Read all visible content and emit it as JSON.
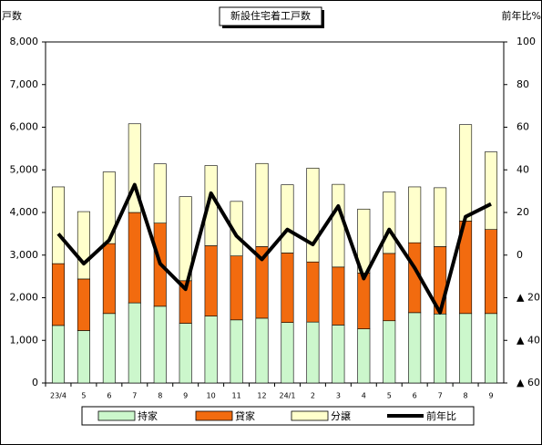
{
  "chart_data": {
    "type": "bar",
    "stacked": true,
    "title": "新設住宅着工戸数",
    "y_label": "戸数",
    "y2_label": "前年比%",
    "categories": [
      "23/4",
      "5",
      "6",
      "7",
      "8",
      "9",
      "10",
      "11",
      "12",
      "24/1",
      "2",
      "3",
      "4",
      "5",
      "6",
      "7",
      "8",
      "9"
    ],
    "series": [
      {
        "name": "持家",
        "color": "#ccf7cc",
        "values": [
          1350,
          1230,
          1630,
          1880,
          1800,
          1400,
          1570,
          1480,
          1520,
          1420,
          1430,
          1360,
          1270,
          1460,
          1650,
          1620,
          1630,
          1630
        ]
      },
      {
        "name": "貸家",
        "color": "#f26b0f",
        "values": [
          1450,
          1210,
          1640,
          2120,
          1950,
          1000,
          1650,
          1500,
          1680,
          1630,
          1410,
          1360,
          1310,
          1580,
          1640,
          1580,
          2170,
          1970
        ]
      },
      {
        "name": "分譲",
        "color": "#ffffcc",
        "values": [
          1800,
          1580,
          1680,
          2080,
          1390,
          1970,
          1880,
          1280,
          1950,
          1600,
          2200,
          1940,
          1500,
          1440,
          1310,
          1380,
          2260,
          1820
        ]
      },
      {
        "name": "前年比",
        "color": "#000000",
        "type": "line",
        "axis": "y2",
        "values": [
          10,
          -4,
          7,
          33,
          -4,
          -16,
          29,
          9,
          -2,
          12,
          5,
          23,
          -11,
          12,
          -6,
          -27,
          18,
          24
        ]
      }
    ],
    "ylim": [
      0,
      8000
    ],
    "yticks": [
      0,
      {
        "value": 1000,
        "label": "1,000"
      },
      {
        "value": 2000,
        "label": "2,000"
      },
      {
        "value": 3000,
        "label": "3,000"
      },
      {
        "value": 4000,
        "label": "4,000"
      },
      {
        "value": 5000,
        "label": "5,000"
      },
      {
        "value": 6000,
        "label": "6,000"
      },
      {
        "value": 7000,
        "label": "7,000"
      },
      {
        "value": 8000,
        "label": "8,000"
      }
    ],
    "y2lim": [
      -60,
      100
    ],
    "y2ticks": [
      100,
      80,
      60,
      40,
      20,
      0,
      {
        "value": -20,
        "label": "▲ 20"
      },
      {
        "value": -40,
        "label": "▲ 40"
      },
      {
        "value": -60,
        "label": "▲ 60"
      }
    ],
    "legend": "bottom"
  }
}
